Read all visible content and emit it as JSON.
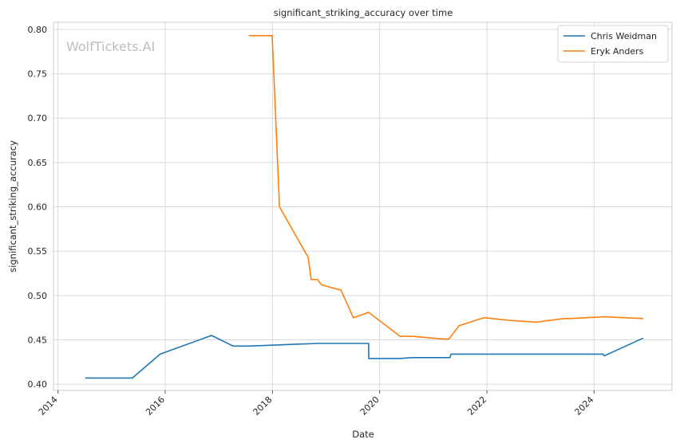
{
  "chart_data": {
    "type": "line",
    "title": "significant_striking_accuracy over time",
    "xlabel": "Date",
    "ylabel": "significant_striking_accuracy",
    "watermark": "WolfTickets.AI",
    "xlim": [
      "2013-12-01",
      "2025-06-15"
    ],
    "ylim": [
      0.393,
      0.808
    ],
    "x_ticks": [
      "2014",
      "2016",
      "2018",
      "2020",
      "2022",
      "2024"
    ],
    "y_ticks": [
      0.4,
      0.45,
      0.5,
      0.55,
      0.6,
      0.65,
      0.7,
      0.75,
      0.8
    ],
    "y_tick_labels": [
      "0.40",
      "0.45",
      "0.50",
      "0.55",
      "0.60",
      "0.65",
      "0.70",
      "0.75",
      "0.80"
    ],
    "grid": true,
    "legend_position": "top-right",
    "series": [
      {
        "name": "Chris Weidman",
        "color": "#1f77b4",
        "x": [
          "2014-07-05",
          "2015-05-23",
          "2015-11-28",
          "2016-11-12",
          "2017-04-08",
          "2017-07-29",
          "2018-11-03",
          "2019-10-18",
          "2019-10-19",
          "2020-05-20",
          "2020-08-08",
          "2021-04-24",
          "2021-05-01",
          "2023-04-29",
          "2024-03-02",
          "2024-03-10",
          "2024-12-01"
        ],
        "y": [
          0.407,
          0.407,
          0.434,
          0.455,
          0.443,
          0.443,
          0.446,
          0.446,
          0.429,
          0.429,
          0.43,
          0.43,
          0.434,
          0.434,
          0.434,
          0.432,
          0.452
        ]
      },
      {
        "name": "Eryk Anders",
        "color": "#ff7f0e",
        "x": [
          "2017-07-22",
          "2017-12-30",
          "2018-02-18",
          "2018-09-01",
          "2018-09-22",
          "2018-11-03",
          "2018-12-01",
          "2019-04-13",
          "2019-07-06",
          "2019-10-18",
          "2020-05-20",
          "2020-08-08",
          "2021-03-06",
          "2021-04-17",
          "2021-06-26",
          "2021-12-11",
          "2022-06-04",
          "2022-12-03",
          "2023-06-10",
          "2023-07-15",
          "2024-03-16",
          "2024-12-01"
        ],
        "y": [
          0.793,
          0.793,
          0.6,
          0.543,
          0.518,
          0.518,
          0.512,
          0.506,
          0.475,
          0.481,
          0.454,
          0.454,
          0.451,
          0.451,
          0.466,
          0.475,
          0.472,
          0.47,
          0.474,
          0.474,
          0.476,
          0.474
        ]
      }
    ]
  }
}
